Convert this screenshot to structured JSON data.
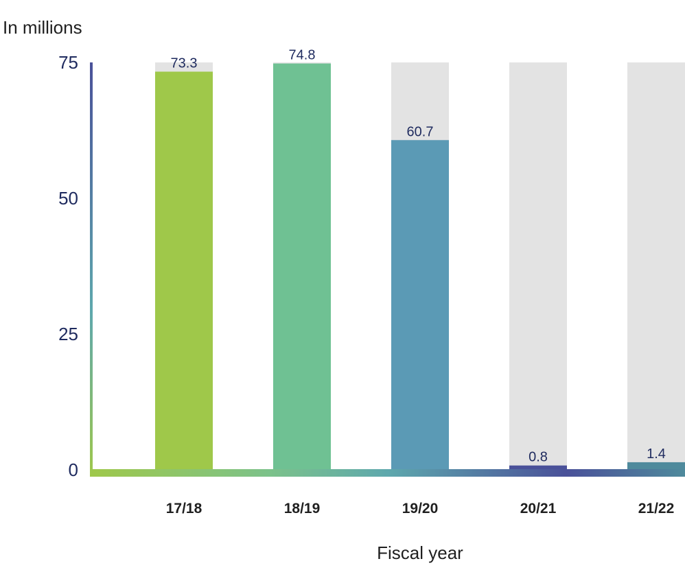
{
  "chart_data": {
    "type": "bar",
    "title": "",
    "ylabel": "In millions",
    "xlabel": "Fiscal year",
    "categories": [
      "17/18",
      "18/19",
      "19/20",
      "20/21",
      "21/22"
    ],
    "values": [
      73.3,
      74.8,
      60.7,
      0.8,
      1.4
    ],
    "data_labels": [
      "73.3",
      "74.8",
      "60.7",
      "0.8",
      "1.4"
    ],
    "ylim": [
      0,
      75
    ],
    "yticks": [
      0,
      25,
      50,
      75
    ],
    "ytick_labels": [
      "0",
      "25",
      "50",
      "75"
    ],
    "background_bar_max": 75,
    "grid": false,
    "legend": "none",
    "colors": {
      "bars": [
        "#9fc84a",
        "#6fc193",
        "#5b9ab5",
        "#4a5199",
        "#4f8a9c"
      ],
      "background_bar": "#e3e3e3",
      "text": "#1e2a5e",
      "axis_gradient": [
        "#9fc84a",
        "#6fc193",
        "#5b9ab5",
        "#4a5199",
        "#4f8a9c"
      ]
    }
  }
}
